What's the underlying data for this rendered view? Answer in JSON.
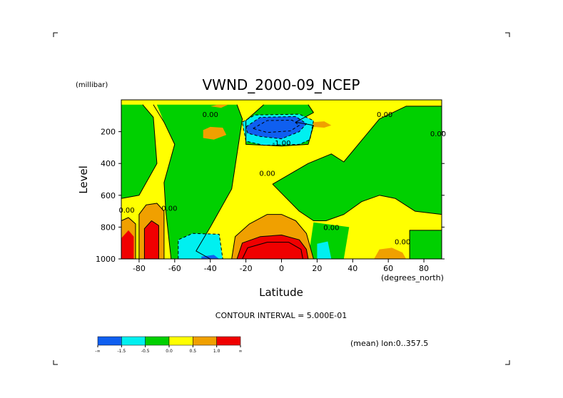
{
  "chart_data": {
    "type": "contour",
    "title": "VWND_2000-09_NCEP",
    "xlabel": "Latitude",
    "ylabel": "Level",
    "x_unit": "(degrees_north)",
    "y_unit": "(millibar)",
    "xlim": [
      -90,
      90
    ],
    "ylim": [
      1000,
      0
    ],
    "x_ticks": [
      -80,
      -60,
      -40,
      -20,
      0,
      20,
      40,
      60,
      80
    ],
    "x_tick_labels": [
      "-80",
      "-60",
      "-40",
      "-20",
      "0",
      "20",
      "40",
      "60",
      "80"
    ],
    "y_ticks": [
      200,
      400,
      600,
      800,
      1000
    ],
    "y_tick_labels": [
      "200",
      "400",
      "600",
      "800",
      "1000"
    ],
    "contour_interval_text": "CONTOUR INTERVAL = 5.000E-01",
    "subset_text": "(mean) lon:0..357.5",
    "contour_labels": [
      {
        "text": "0.00",
        "lon": -40,
        "lev": 90
      },
      {
        "text": "-1.00",
        "lon": 0,
        "lev": 270
      },
      {
        "text": "0.00",
        "lon": -8,
        "lev": 460
      },
      {
        "text": "0.00",
        "lon": 58,
        "lev": 90
      },
      {
        "text": "0.00",
        "lon": 88,
        "lev": 210
      },
      {
        "text": "0.00",
        "lon": -63,
        "lev": 680
      },
      {
        "text": "0.00",
        "lon": -87,
        "lev": 690
      },
      {
        "text": "0.00",
        "lon": 28,
        "lev": 800
      },
      {
        "text": "0.00",
        "lon": 68,
        "lev": 890
      }
    ],
    "legend": {
      "levels": [
        "-∞",
        "-1.5",
        "-0.5",
        "0.0",
        "0.5",
        "1.0",
        "∞"
      ],
      "colors": [
        "#0f5ff0",
        "#00f0f0",
        "#00d000",
        "#ffff00",
        "#f0a000",
        "#f00000"
      ]
    },
    "regions": [
      {
        "fill": "#00d000",
        "points": [
          [
            -90,
            30
          ],
          [
            -78,
            30
          ],
          [
            -72,
            110
          ],
          [
            -70,
            400
          ],
          [
            -80,
            600
          ],
          [
            -90,
            620
          ]
        ]
      },
      {
        "fill": "#00d000",
        "points": [
          [
            -70,
            30
          ],
          [
            -25,
            30
          ],
          [
            -22,
            120
          ],
          [
            -28,
            560
          ],
          [
            -40,
            800
          ],
          [
            -48,
            950
          ],
          [
            -40,
            1000
          ],
          [
            -62,
            1000
          ],
          [
            -65,
            700
          ],
          [
            -66,
            520
          ],
          [
            -60,
            280
          ],
          [
            -66,
            140
          ]
        ]
      },
      {
        "fill": "#00d000",
        "points": [
          [
            -10,
            30
          ],
          [
            15,
            30
          ],
          [
            18,
            80
          ],
          [
            8,
            140
          ],
          [
            18,
            160
          ],
          [
            15,
            280
          ],
          [
            0,
            290
          ],
          [
            -20,
            280
          ],
          [
            -20,
            130
          ]
        ]
      },
      {
        "fill": "#00d000",
        "points": [
          [
            -5,
            530
          ],
          [
            15,
            400
          ],
          [
            28,
            340
          ],
          [
            35,
            390
          ],
          [
            55,
            120
          ],
          [
            70,
            40
          ],
          [
            90,
            40
          ],
          [
            90,
            720
          ],
          [
            75,
            700
          ],
          [
            64,
            620
          ],
          [
            55,
            600
          ],
          [
            45,
            640
          ],
          [
            35,
            720
          ],
          [
            25,
            760
          ],
          [
            18,
            760
          ],
          [
            10,
            700
          ]
        ]
      },
      {
        "fill": "#00d000",
        "points": [
          [
            82,
            40
          ],
          [
            90,
            40
          ],
          [
            90,
            430
          ],
          [
            82,
            440
          ],
          [
            80,
            160
          ]
        ]
      },
      {
        "fill": "#00d000",
        "points": [
          [
            72,
            820
          ],
          [
            90,
            820
          ],
          [
            90,
            1000
          ],
          [
            72,
            1000
          ]
        ]
      },
      {
        "fill": "#00d000",
        "points": [
          [
            18,
            770
          ],
          [
            38,
            800
          ],
          [
            35,
            1000
          ],
          [
            15,
            1000
          ]
        ]
      },
      {
        "fill": "#00f0f0",
        "points": [
          [
            -58,
            880
          ],
          [
            -50,
            840
          ],
          [
            -35,
            845
          ],
          [
            -33,
            1000
          ],
          [
            -58,
            1000
          ]
        ]
      },
      {
        "fill": "#0f5ff0",
        "points": [
          [
            -45,
            985
          ],
          [
            -38,
            975
          ],
          [
            -35,
            1000
          ],
          [
            -45,
            1000
          ]
        ]
      },
      {
        "fill": "#00f0f0",
        "points": [
          [
            20,
            905
          ],
          [
            26,
            890
          ],
          [
            28,
            1000
          ],
          [
            20,
            1000
          ]
        ]
      },
      {
        "fill": "#00f0f0",
        "points": [
          [
            -22,
            140
          ],
          [
            -15,
            95
          ],
          [
            10,
            90
          ],
          [
            18,
            130
          ],
          [
            16,
            250
          ],
          [
            10,
            280
          ],
          [
            -10,
            285
          ],
          [
            -20,
            260
          ]
        ]
      },
      {
        "fill": "#0f5ff0",
        "points": [
          [
            -20,
            170
          ],
          [
            -12,
            110
          ],
          [
            8,
            105
          ],
          [
            14,
            150
          ],
          [
            10,
            200
          ],
          [
            0,
            245
          ],
          [
            -12,
            230
          ],
          [
            -19,
            210
          ]
        ]
      },
      {
        "fill": "#f0a000",
        "points": [
          [
            -40,
            40
          ],
          [
            -36,
            30
          ],
          [
            -30,
            30
          ],
          [
            -34,
            50
          ]
        ]
      },
      {
        "fill": "#f0a000",
        "points": [
          [
            -44,
            190
          ],
          [
            -40,
            170
          ],
          [
            -33,
            175
          ],
          [
            -31,
            220
          ],
          [
            -38,
            250
          ],
          [
            -44,
            240
          ]
        ]
      },
      {
        "fill": "#f0a000",
        "points": [
          [
            18,
            140
          ],
          [
            24,
            135
          ],
          [
            28,
            160
          ],
          [
            24,
            175
          ],
          [
            18,
            170
          ]
        ]
      },
      {
        "fill": "#f0a000",
        "points": [
          [
            52,
            1000
          ],
          [
            55,
            940
          ],
          [
            62,
            930
          ],
          [
            68,
            960
          ],
          [
            70,
            1000
          ]
        ]
      },
      {
        "fill": "#f0a000",
        "points": [
          [
            -28,
            1000
          ],
          [
            -26,
            860
          ],
          [
            -18,
            780
          ],
          [
            -8,
            720
          ],
          [
            0,
            720
          ],
          [
            8,
            760
          ],
          [
            14,
            840
          ],
          [
            18,
            1000
          ]
        ]
      },
      {
        "fill": "#f00000",
        "points": [
          [
            -25,
            1000
          ],
          [
            -22,
            900
          ],
          [
            -12,
            860
          ],
          [
            0,
            850
          ],
          [
            10,
            880
          ],
          [
            14,
            940
          ],
          [
            15,
            1000
          ]
        ]
      },
      {
        "fill": "#f0a000",
        "points": [
          [
            -90,
            760
          ],
          [
            -86,
            740
          ],
          [
            -82,
            780
          ],
          [
            -82,
            1000
          ],
          [
            -90,
            1000
          ]
        ]
      },
      {
        "fill": "#f00000",
        "points": [
          [
            -90,
            870
          ],
          [
            -86,
            820
          ],
          [
            -83,
            860
          ],
          [
            -83,
            1000
          ],
          [
            -90,
            1000
          ]
        ]
      },
      {
        "fill": "#f0a000",
        "points": [
          [
            -80,
            1000
          ],
          [
            -80,
            720
          ],
          [
            -76,
            660
          ],
          [
            -70,
            650
          ],
          [
            -66,
            700
          ],
          [
            -66,
            1000
          ]
        ]
      },
      {
        "fill": "#f00000",
        "points": [
          [
            -77,
            1000
          ],
          [
            -77,
            810
          ],
          [
            -73,
            760
          ],
          [
            -69,
            790
          ],
          [
            -69,
            1000
          ]
        ]
      }
    ],
    "contour_lines": [
      {
        "style": "solid",
        "points": [
          [
            -72,
            30
          ],
          [
            -66,
            140
          ],
          [
            -60,
            280
          ],
          [
            -66,
            520
          ],
          [
            -65,
            700
          ],
          [
            -62,
            1000
          ]
        ]
      },
      {
        "style": "solid",
        "points": [
          [
            -25,
            30
          ],
          [
            -22,
            120
          ],
          [
            -28,
            560
          ],
          [
            -40,
            800
          ],
          [
            -48,
            950
          ],
          [
            -40,
            1000
          ]
        ]
      },
      {
        "style": "solid",
        "points": [
          [
            -10,
            30
          ],
          [
            -20,
            130
          ],
          [
            -20,
            280
          ],
          [
            0,
            290
          ],
          [
            15,
            280
          ],
          [
            18,
            160
          ],
          [
            8,
            140
          ],
          [
            18,
            80
          ],
          [
            15,
            30
          ]
        ]
      },
      {
        "style": "solid",
        "points": [
          [
            -5,
            530
          ],
          [
            15,
            400
          ],
          [
            28,
            340
          ],
          [
            35,
            390
          ],
          [
            55,
            120
          ],
          [
            70,
            40
          ],
          [
            90,
            40
          ]
        ]
      },
      {
        "style": "solid",
        "points": [
          [
            90,
            720
          ],
          [
            75,
            700
          ],
          [
            64,
            620
          ],
          [
            55,
            600
          ],
          [
            45,
            640
          ],
          [
            35,
            720
          ],
          [
            25,
            760
          ],
          [
            18,
            760
          ],
          [
            10,
            700
          ],
          [
            -5,
            530
          ]
        ]
      },
      {
        "style": "solid",
        "points": [
          [
            -28,
            1000
          ],
          [
            -26,
            860
          ],
          [
            -18,
            780
          ],
          [
            -8,
            720
          ],
          [
            0,
            720
          ],
          [
            8,
            760
          ],
          [
            14,
            840
          ],
          [
            18,
            1000
          ]
        ]
      },
      {
        "style": "solid",
        "points": [
          [
            -25,
            1000
          ],
          [
            -22,
            900
          ],
          [
            -12,
            860
          ],
          [
            0,
            850
          ],
          [
            10,
            880
          ],
          [
            14,
            940
          ],
          [
            15,
            1000
          ]
        ]
      },
      {
        "style": "solid",
        "points": [
          [
            -22,
            1000
          ],
          [
            -19,
            930
          ],
          [
            -8,
            895
          ],
          [
            4,
            895
          ],
          [
            11,
            940
          ],
          [
            12,
            1000
          ]
        ]
      },
      {
        "style": "solid",
        "points": [
          [
            -90,
            760
          ],
          [
            -86,
            740
          ],
          [
            -82,
            780
          ],
          [
            -82,
            1000
          ]
        ]
      },
      {
        "style": "solid",
        "points": [
          [
            -80,
            1000
          ],
          [
            -80,
            720
          ],
          [
            -76,
            660
          ],
          [
            -70,
            650
          ],
          [
            -66,
            700
          ],
          [
            -66,
            1000
          ]
        ]
      },
      {
        "style": "solid",
        "points": [
          [
            -77,
            1000
          ],
          [
            -77,
            810
          ],
          [
            -73,
            760
          ],
          [
            -69,
            790
          ],
          [
            -69,
            1000
          ]
        ]
      },
      {
        "style": "solid",
        "points": [
          [
            -90,
            620
          ],
          [
            -80,
            600
          ],
          [
            -70,
            400
          ],
          [
            -72,
            110
          ],
          [
            -78,
            30
          ]
        ]
      },
      {
        "style": "solid",
        "points": [
          [
            72,
            1000
          ],
          [
            72,
            820
          ],
          [
            90,
            820
          ]
        ]
      },
      {
        "style": "dashed",
        "points": [
          [
            -58,
            1000
          ],
          [
            -58,
            880
          ],
          [
            -50,
            840
          ],
          [
            -35,
            845
          ],
          [
            -33,
            1000
          ]
        ]
      },
      {
        "style": "dashed",
        "points": [
          [
            -22,
            140
          ],
          [
            -15,
            95
          ],
          [
            10,
            90
          ],
          [
            18,
            130
          ],
          [
            16,
            250
          ],
          [
            10,
            280
          ],
          [
            -10,
            285
          ],
          [
            -20,
            260
          ],
          [
            -22,
            140
          ]
        ]
      },
      {
        "style": "dashed",
        "points": [
          [
            -20,
            170
          ],
          [
            -12,
            110
          ],
          [
            8,
            105
          ],
          [
            14,
            150
          ],
          [
            10,
            200
          ],
          [
            0,
            245
          ],
          [
            -12,
            230
          ],
          [
            -19,
            210
          ],
          [
            -20,
            170
          ]
        ]
      },
      {
        "style": "dashed",
        "points": [
          [
            -16,
            180
          ],
          [
            -8,
            130
          ],
          [
            6,
            128
          ],
          [
            10,
            160
          ],
          [
            5,
            195
          ],
          [
            -8,
            205
          ],
          [
            -16,
            180
          ]
        ]
      }
    ]
  }
}
